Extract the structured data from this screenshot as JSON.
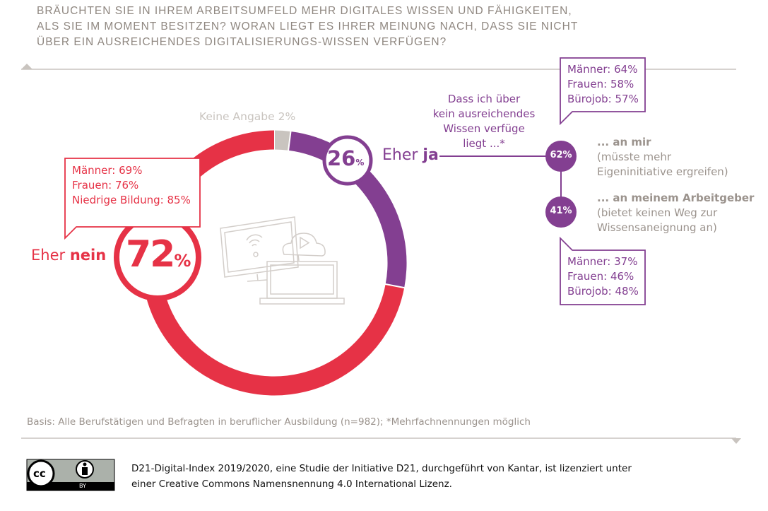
{
  "question": [
    "Bräuchten Sie in Ihrem Arbeitsumfeld mehr digitales Wissen und Fähigkeiten,",
    "als Sie im Moment besitzen? Woran liegt es Ihrer Meinung nach, dass Sie nicht",
    "über ein ausreichendes Digitalisierungs-Wissen verfügen?"
  ],
  "colors": {
    "nein": "#e63246",
    "ja": "#833f91",
    "keine_angabe": "#c9c4bf",
    "text_gray": "#9b938d"
  },
  "chart_data": {
    "type": "pie",
    "donut": true,
    "categories": [
      "Keine Angabe",
      "Eher ja",
      "Eher nein"
    ],
    "values": [
      2,
      26,
      72
    ],
    "unit": "%"
  },
  "labels": {
    "keine_angabe": "Keine Angabe 2%",
    "ja_prefix": "Eher ",
    "ja_bold": "ja",
    "ja_value": "26",
    "nein_prefix": "Eher ",
    "nein_bold": "nein",
    "nein_value": "72",
    "percent": "%"
  },
  "nein_callout": [
    "Männer: 69%",
    "Frauen: 76%",
    "Niedrige Bildung: 85%"
  ],
  "reason_intro": [
    "Dass ich über",
    "kein ausreichendes",
    "Wissen verfüge",
    "liegt ...*"
  ],
  "reasons": [
    {
      "value": "62%",
      "title": "... an mir",
      "detail": [
        "(müsste mehr",
        "Eigeninitiative ergreifen)"
      ],
      "callout": [
        "Männer: 64%",
        "Frauen: 58%",
        "Bürojob: 57%"
      ]
    },
    {
      "value": "41%",
      "title": "... an meinem Arbeitgeber",
      "detail": [
        "(bietet keinen Weg zur",
        "Wissensaneignung an)"
      ],
      "callout": [
        "Männer: 37%",
        "Frauen: 46%",
        "Bürojob: 48%"
      ]
    }
  ],
  "basis": "Basis: Alle Berufstätigen und Befragten in beruflicher Ausbildung (n=982); *Mehrfachnennungen möglich",
  "license": {
    "badge_text": "BY",
    "line1": "D21-Digital-Index 2019/2020, eine Studie der Initiative D21, durchgeführt von Kantar, ist lizenziert unter",
    "line2": "einer Creative Commons Namensnennung 4.0 International Lizenz."
  }
}
